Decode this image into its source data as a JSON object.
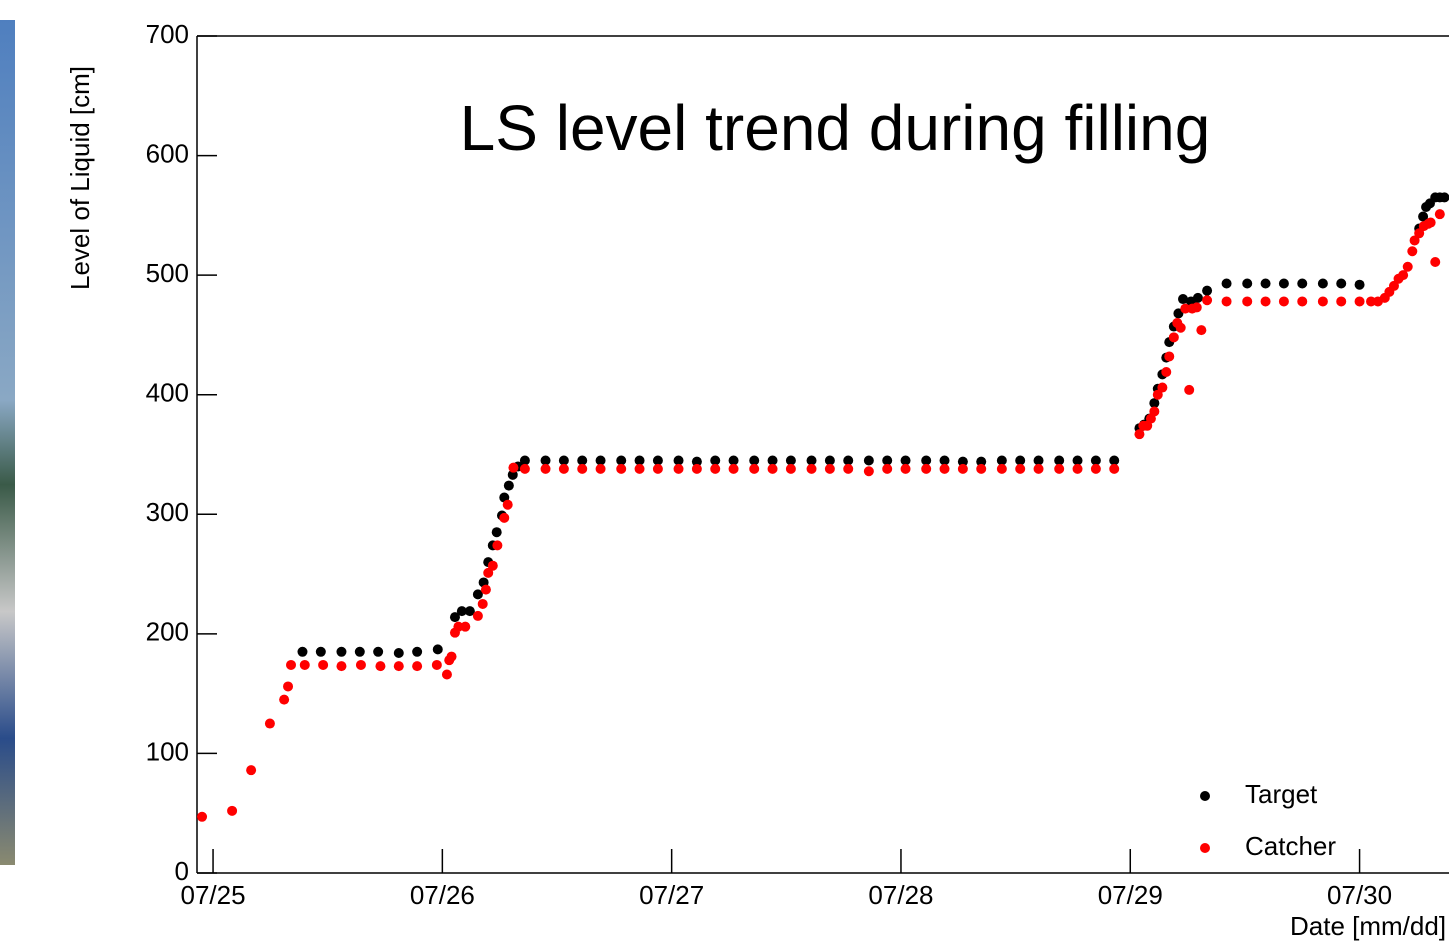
{
  "chart_data": {
    "type": "scatter",
    "title": "LS level trend during filling",
    "x_label": "Date [mm/dd]",
    "y_label": "Level of Liquid [cm]",
    "xlim": [
      -0.07,
      5.39
    ],
    "ylim": [
      0,
      700
    ],
    "yticks": [
      0,
      100,
      200,
      300,
      400,
      500,
      600,
      700
    ],
    "xticks": [
      {
        "value": 0,
        "label": "07/25"
      },
      {
        "value": 1,
        "label": "07/26"
      },
      {
        "value": 2,
        "label": "07/27"
      },
      {
        "value": 3,
        "label": "07/28"
      },
      {
        "value": 4,
        "label": "07/29"
      },
      {
        "value": 5,
        "label": "07/30"
      }
    ],
    "legend": "bottom right",
    "series": [
      {
        "name": "Target",
        "color": "#000000",
        "x": [
          0.39,
          0.47,
          0.56,
          0.64,
          0.72,
          0.81,
          0.89,
          0.98,
          1.055,
          1.085,
          1.12,
          1.155,
          1.18,
          1.2,
          1.22,
          1.237,
          1.26,
          1.27,
          1.29,
          1.307,
          1.33,
          1.36,
          1.45,
          1.53,
          1.61,
          1.69,
          1.78,
          1.86,
          1.94,
          2.03,
          2.11,
          2.19,
          2.27,
          2.36,
          2.44,
          2.52,
          2.61,
          2.69,
          2.77,
          2.86,
          2.94,
          3.02,
          3.11,
          3.19,
          3.27,
          3.35,
          3.44,
          3.52,
          3.6,
          3.69,
          3.77,
          3.85,
          3.93,
          4.04,
          4.06,
          4.083,
          4.105,
          4.12,
          4.14,
          4.157,
          4.17,
          4.19,
          4.21,
          4.23,
          4.265,
          4.295,
          4.335,
          4.42,
          4.51,
          4.59,
          4.67,
          4.75,
          4.84,
          4.92,
          5.0,
          5.26,
          5.277,
          5.29,
          5.307,
          5.33,
          5.35,
          5.37
        ],
        "values": [
          185,
          185,
          185,
          185,
          185,
          184,
          185,
          187,
          214,
          219,
          219,
          233,
          243,
          260,
          274,
          285,
          299,
          314,
          324,
          333,
          340,
          345,
          345,
          345,
          345,
          345,
          345,
          345,
          345,
          345,
          344,
          345,
          345,
          345,
          345,
          345,
          345,
          345,
          345,
          345,
          345,
          345,
          345,
          345,
          344,
          344,
          345,
          345,
          345,
          345,
          345,
          345,
          345,
          372,
          375,
          380,
          393,
          405,
          417,
          431,
          444,
          457,
          468,
          480,
          478,
          481,
          487,
          493,
          493,
          493,
          493,
          493,
          493,
          493,
          492,
          539,
          549,
          557,
          560,
          565,
          565,
          565
        ]
      },
      {
        "name": "Catcher",
        "color": "#ff0000",
        "x": [
          -0.048,
          0.083,
          0.166,
          0.248,
          0.31,
          0.327,
          0.34,
          0.4,
          0.48,
          0.56,
          0.645,
          0.73,
          0.81,
          0.89,
          0.976,
          1.02,
          1.03,
          1.04,
          1.055,
          1.07,
          1.1,
          1.155,
          1.176,
          1.19,
          1.2,
          1.22,
          1.24,
          1.27,
          1.285,
          1.31,
          1.36,
          1.45,
          1.53,
          1.61,
          1.69,
          1.78,
          1.86,
          1.94,
          2.03,
          2.11,
          2.19,
          2.27,
          2.36,
          2.44,
          2.52,
          2.61,
          2.69,
          2.77,
          2.86,
          2.94,
          3.02,
          3.11,
          3.19,
          3.27,
          3.35,
          3.44,
          3.52,
          3.6,
          3.69,
          3.77,
          3.85,
          3.93,
          4.04,
          4.057,
          4.074,
          4.09,
          4.105,
          4.12,
          4.14,
          4.157,
          4.17,
          4.19,
          4.205,
          4.22,
          4.24,
          4.257,
          4.27,
          4.29,
          4.31,
          4.335,
          4.42,
          4.51,
          4.59,
          4.67,
          4.75,
          4.84,
          4.92,
          5.0,
          5.05,
          5.08,
          5.11,
          5.13,
          5.15,
          5.17,
          5.19,
          5.21,
          5.23,
          5.24,
          5.26,
          5.28,
          5.3,
          5.31,
          5.33,
          5.35
        ],
        "values": [
          47,
          52,
          86,
          125,
          145,
          156,
          174,
          174,
          174,
          173,
          174,
          173,
          173,
          173,
          174,
          166,
          178,
          181,
          201,
          206,
          206,
          215,
          225,
          237,
          251,
          257,
          274,
          297,
          308,
          339,
          338,
          338,
          338,
          338,
          338,
          338,
          338,
          338,
          338,
          338,
          338,
          338,
          338,
          338,
          338,
          338,
          338,
          338,
          336,
          338,
          338,
          338,
          338,
          338,
          338,
          338,
          338,
          338,
          338,
          338,
          338,
          338,
          367,
          374,
          374,
          380,
          386,
          400,
          406,
          419,
          432,
          448,
          460,
          456,
          472,
          404,
          472,
          473,
          454,
          479,
          478,
          478,
          478,
          478,
          478,
          478,
          478,
          478,
          478,
          478,
          481,
          486,
          491,
          497,
          500,
          507,
          520,
          529,
          535,
          541,
          543,
          544,
          511,
          551
        ]
      }
    ]
  }
}
